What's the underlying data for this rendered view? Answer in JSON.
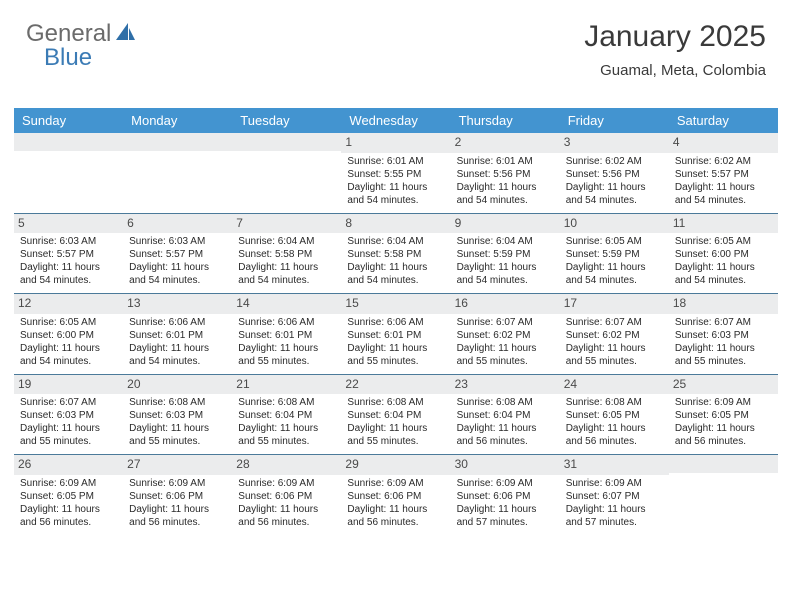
{
  "brand": {
    "word1": "General",
    "word2": "Blue",
    "color_general": "#6b6b6b",
    "color_blue": "#3b7bb5",
    "icon_fill": "#2f6fa8"
  },
  "header": {
    "title": "January 2025",
    "location": "Guamal, Meta, Colombia"
  },
  "style": {
    "header_row_bg": "#4394d0",
    "header_row_text": "#ffffff",
    "daynum_bg": "#ebeced",
    "week_divider": "#4b7a9a",
    "body_text": "#2a2a2a"
  },
  "day_labels": [
    "Sunday",
    "Monday",
    "Tuesday",
    "Wednesday",
    "Thursday",
    "Friday",
    "Saturday"
  ],
  "weeks": [
    [
      {
        "n": "",
        "sr": "",
        "ss": "",
        "dl": ""
      },
      {
        "n": "",
        "sr": "",
        "ss": "",
        "dl": ""
      },
      {
        "n": "",
        "sr": "",
        "ss": "",
        "dl": ""
      },
      {
        "n": "1",
        "sr": "Sunrise: 6:01 AM",
        "ss": "Sunset: 5:55 PM",
        "dl": "Daylight: 11 hours and 54 minutes."
      },
      {
        "n": "2",
        "sr": "Sunrise: 6:01 AM",
        "ss": "Sunset: 5:56 PM",
        "dl": "Daylight: 11 hours and 54 minutes."
      },
      {
        "n": "3",
        "sr": "Sunrise: 6:02 AM",
        "ss": "Sunset: 5:56 PM",
        "dl": "Daylight: 11 hours and 54 minutes."
      },
      {
        "n": "4",
        "sr": "Sunrise: 6:02 AM",
        "ss": "Sunset: 5:57 PM",
        "dl": "Daylight: 11 hours and 54 minutes."
      }
    ],
    [
      {
        "n": "5",
        "sr": "Sunrise: 6:03 AM",
        "ss": "Sunset: 5:57 PM",
        "dl": "Daylight: 11 hours and 54 minutes."
      },
      {
        "n": "6",
        "sr": "Sunrise: 6:03 AM",
        "ss": "Sunset: 5:57 PM",
        "dl": "Daylight: 11 hours and 54 minutes."
      },
      {
        "n": "7",
        "sr": "Sunrise: 6:04 AM",
        "ss": "Sunset: 5:58 PM",
        "dl": "Daylight: 11 hours and 54 minutes."
      },
      {
        "n": "8",
        "sr": "Sunrise: 6:04 AM",
        "ss": "Sunset: 5:58 PM",
        "dl": "Daylight: 11 hours and 54 minutes."
      },
      {
        "n": "9",
        "sr": "Sunrise: 6:04 AM",
        "ss": "Sunset: 5:59 PM",
        "dl": "Daylight: 11 hours and 54 minutes."
      },
      {
        "n": "10",
        "sr": "Sunrise: 6:05 AM",
        "ss": "Sunset: 5:59 PM",
        "dl": "Daylight: 11 hours and 54 minutes."
      },
      {
        "n": "11",
        "sr": "Sunrise: 6:05 AM",
        "ss": "Sunset: 6:00 PM",
        "dl": "Daylight: 11 hours and 54 minutes."
      }
    ],
    [
      {
        "n": "12",
        "sr": "Sunrise: 6:05 AM",
        "ss": "Sunset: 6:00 PM",
        "dl": "Daylight: 11 hours and 54 minutes."
      },
      {
        "n": "13",
        "sr": "Sunrise: 6:06 AM",
        "ss": "Sunset: 6:01 PM",
        "dl": "Daylight: 11 hours and 54 minutes."
      },
      {
        "n": "14",
        "sr": "Sunrise: 6:06 AM",
        "ss": "Sunset: 6:01 PM",
        "dl": "Daylight: 11 hours and 55 minutes."
      },
      {
        "n": "15",
        "sr": "Sunrise: 6:06 AM",
        "ss": "Sunset: 6:01 PM",
        "dl": "Daylight: 11 hours and 55 minutes."
      },
      {
        "n": "16",
        "sr": "Sunrise: 6:07 AM",
        "ss": "Sunset: 6:02 PM",
        "dl": "Daylight: 11 hours and 55 minutes."
      },
      {
        "n": "17",
        "sr": "Sunrise: 6:07 AM",
        "ss": "Sunset: 6:02 PM",
        "dl": "Daylight: 11 hours and 55 minutes."
      },
      {
        "n": "18",
        "sr": "Sunrise: 6:07 AM",
        "ss": "Sunset: 6:03 PM",
        "dl": "Daylight: 11 hours and 55 minutes."
      }
    ],
    [
      {
        "n": "19",
        "sr": "Sunrise: 6:07 AM",
        "ss": "Sunset: 6:03 PM",
        "dl": "Daylight: 11 hours and 55 minutes."
      },
      {
        "n": "20",
        "sr": "Sunrise: 6:08 AM",
        "ss": "Sunset: 6:03 PM",
        "dl": "Daylight: 11 hours and 55 minutes."
      },
      {
        "n": "21",
        "sr": "Sunrise: 6:08 AM",
        "ss": "Sunset: 6:04 PM",
        "dl": "Daylight: 11 hours and 55 minutes."
      },
      {
        "n": "22",
        "sr": "Sunrise: 6:08 AM",
        "ss": "Sunset: 6:04 PM",
        "dl": "Daylight: 11 hours and 55 minutes."
      },
      {
        "n": "23",
        "sr": "Sunrise: 6:08 AM",
        "ss": "Sunset: 6:04 PM",
        "dl": "Daylight: 11 hours and 56 minutes."
      },
      {
        "n": "24",
        "sr": "Sunrise: 6:08 AM",
        "ss": "Sunset: 6:05 PM",
        "dl": "Daylight: 11 hours and 56 minutes."
      },
      {
        "n": "25",
        "sr": "Sunrise: 6:09 AM",
        "ss": "Sunset: 6:05 PM",
        "dl": "Daylight: 11 hours and 56 minutes."
      }
    ],
    [
      {
        "n": "26",
        "sr": "Sunrise: 6:09 AM",
        "ss": "Sunset: 6:05 PM",
        "dl": "Daylight: 11 hours and 56 minutes."
      },
      {
        "n": "27",
        "sr": "Sunrise: 6:09 AM",
        "ss": "Sunset: 6:06 PM",
        "dl": "Daylight: 11 hours and 56 minutes."
      },
      {
        "n": "28",
        "sr": "Sunrise: 6:09 AM",
        "ss": "Sunset: 6:06 PM",
        "dl": "Daylight: 11 hours and 56 minutes."
      },
      {
        "n": "29",
        "sr": "Sunrise: 6:09 AM",
        "ss": "Sunset: 6:06 PM",
        "dl": "Daylight: 11 hours and 56 minutes."
      },
      {
        "n": "30",
        "sr": "Sunrise: 6:09 AM",
        "ss": "Sunset: 6:06 PM",
        "dl": "Daylight: 11 hours and 57 minutes."
      },
      {
        "n": "31",
        "sr": "Sunrise: 6:09 AM",
        "ss": "Sunset: 6:07 PM",
        "dl": "Daylight: 11 hours and 57 minutes."
      },
      {
        "n": "",
        "sr": "",
        "ss": "",
        "dl": ""
      }
    ]
  ]
}
